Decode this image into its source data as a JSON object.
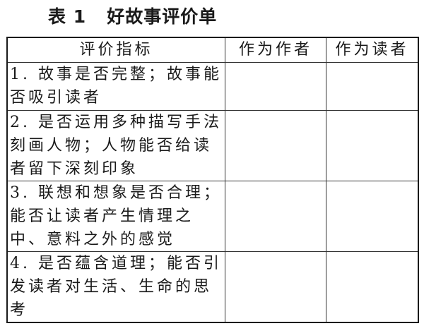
{
  "title": "表 1   好故事评价单",
  "table": {
    "headers": [
      "评价指标",
      "作为作者",
      "作为读者"
    ],
    "rows": [
      {
        "criterion": "1. 故事是否完整；故事能否吸引读者",
        "author": "",
        "reader": ""
      },
      {
        "criterion": "2. 是否运用多种描写手法刻画人物；人物能否给读者留下深刻印象",
        "author": "",
        "reader": ""
      },
      {
        "criterion": "3. 联想和想象是否合理；能否让读者产生情理之中、意料之外的感觉",
        "author": "",
        "reader": ""
      },
      {
        "criterion": "4. 是否蕴含道理；能否引发读者对生活、生命的思考",
        "author": "",
        "reader": ""
      }
    ]
  }
}
